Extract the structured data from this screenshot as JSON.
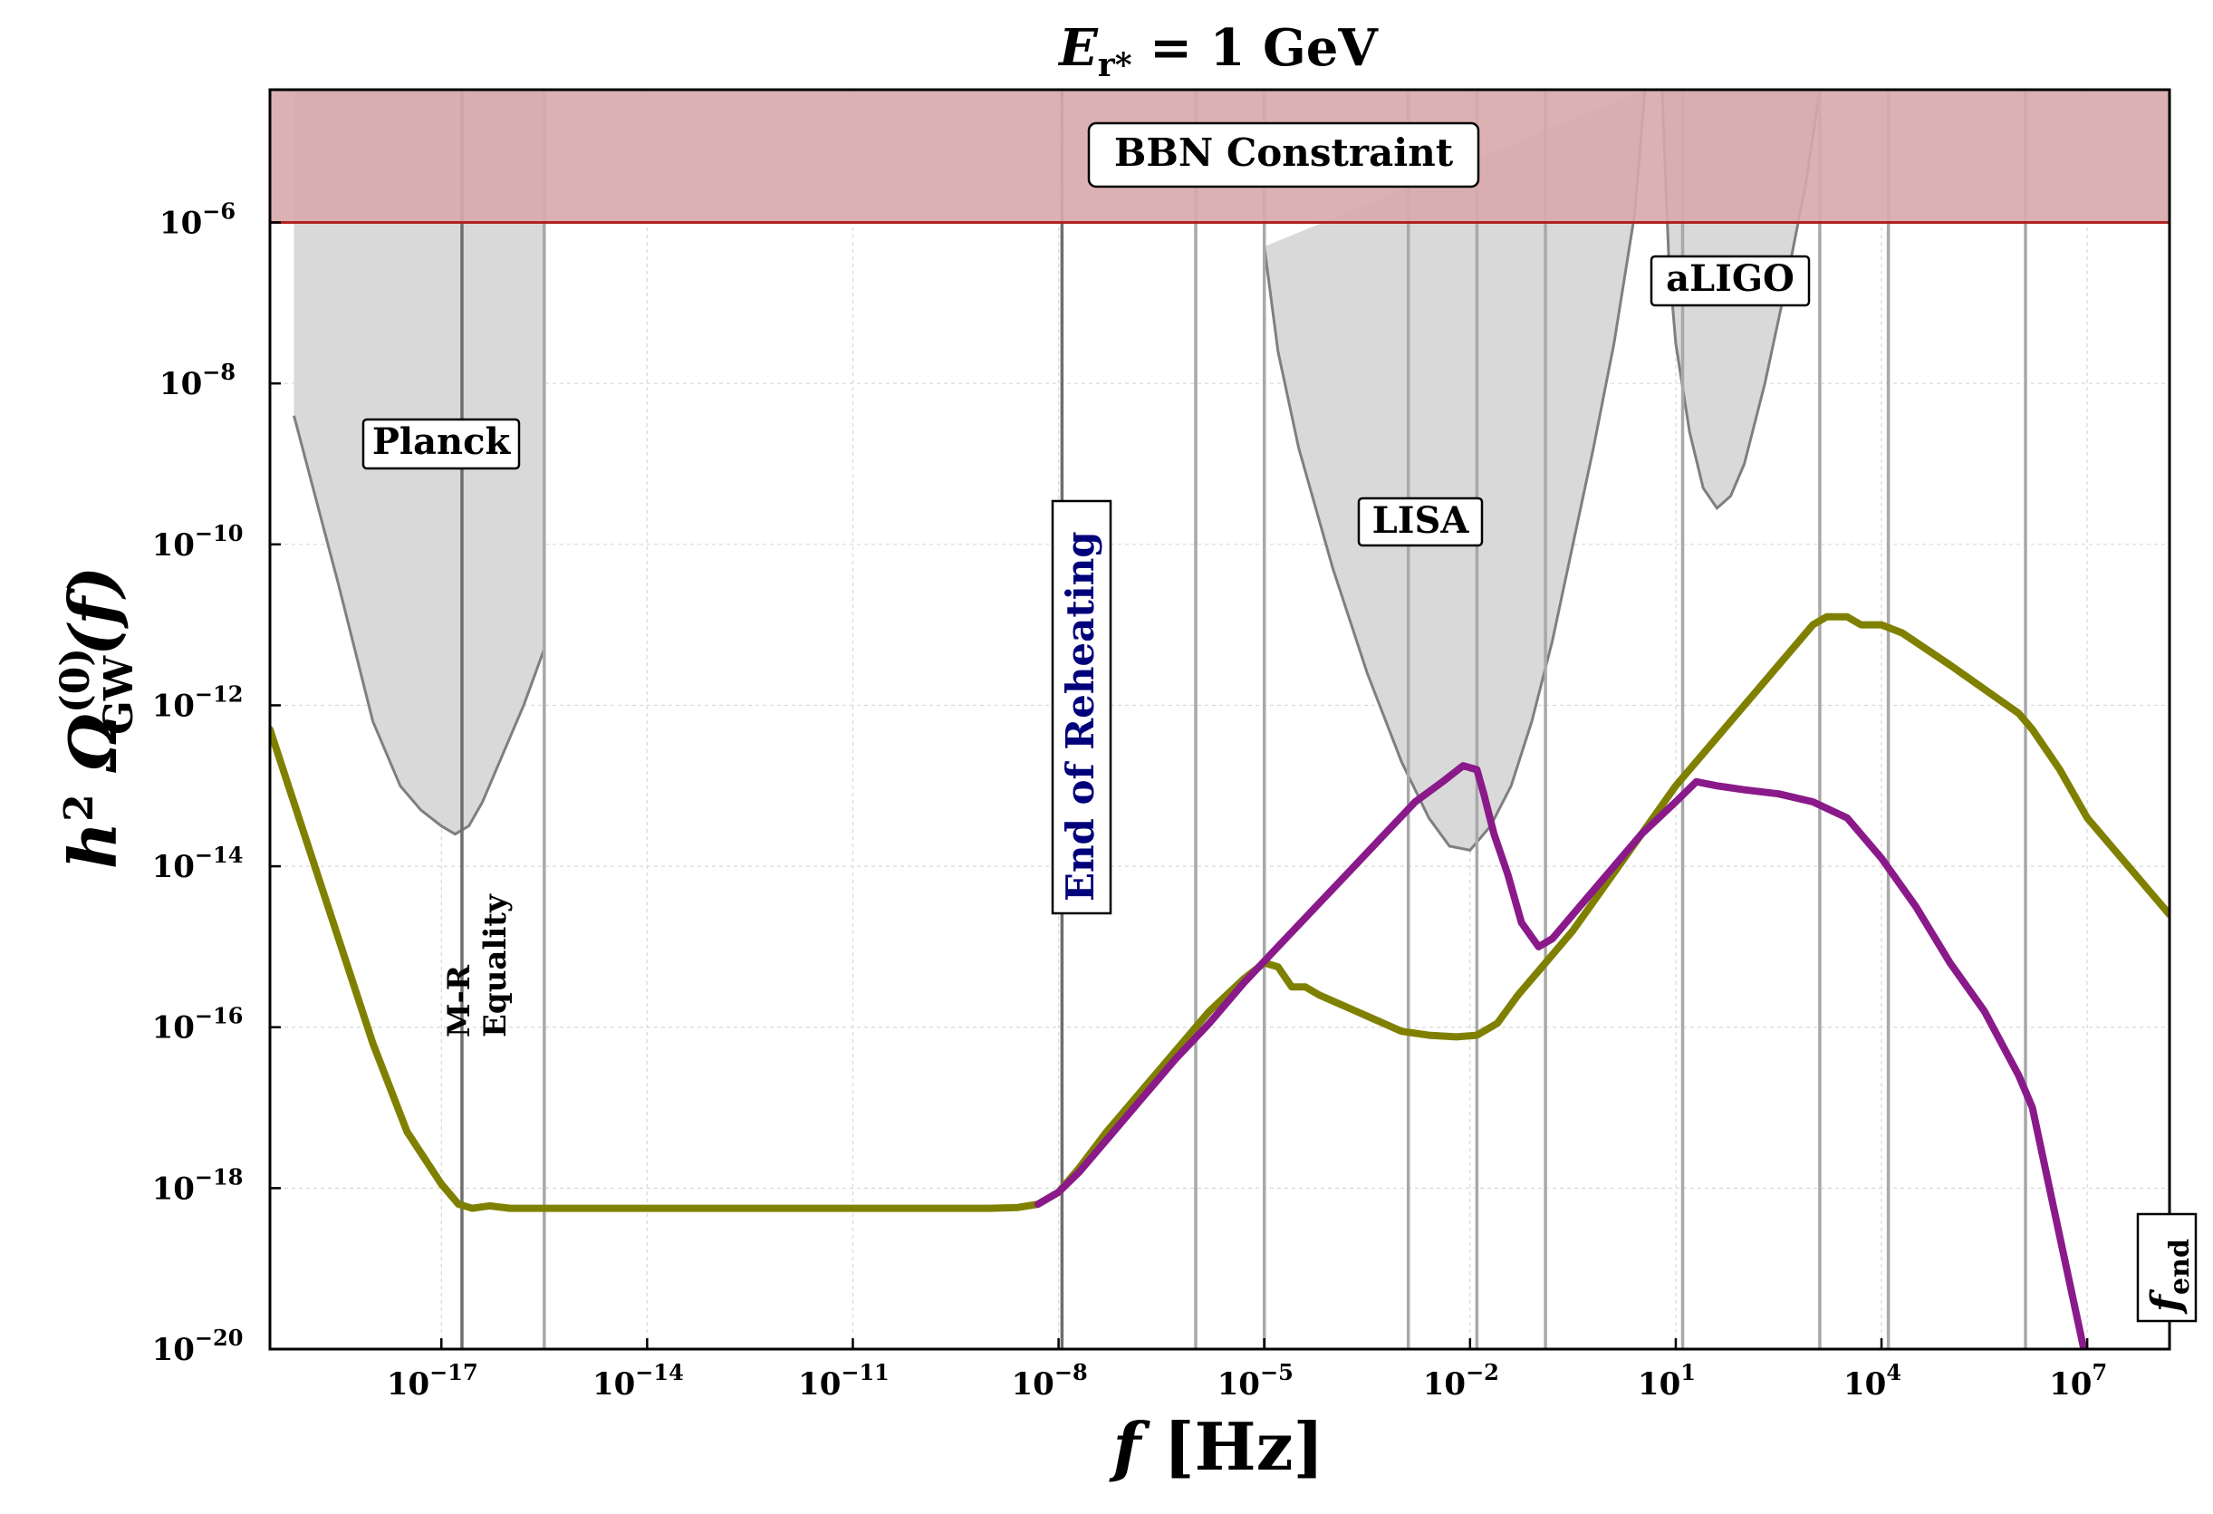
{
  "chart_data": {
    "type": "line",
    "title": {
      "main": "E",
      "sub": "r*",
      "rest": " = 1 GeV"
    },
    "xlabel": {
      "main": "f",
      "rest": " [Hz]"
    },
    "ylabel": {
      "pre": "h",
      "pre_sup": "2",
      "main": " Ω",
      "sup": "(0)",
      "sub": "GW",
      "rest": "(f)"
    },
    "x_scale": "log10",
    "y_scale": "log10",
    "xlim_log10": [
      -19.5,
      8.2
    ],
    "ylim_log10": [
      -20,
      -4.35
    ],
    "grid": true,
    "x_ticks": [
      {
        "base": "10",
        "exp": "−17",
        "log": -17
      },
      {
        "base": "10",
        "exp": "−14",
        "log": -14
      },
      {
        "base": "10",
        "exp": "−11",
        "log": -11
      },
      {
        "base": "10",
        "exp": "−8",
        "log": -8
      },
      {
        "base": "10",
        "exp": "−5",
        "log": -5
      },
      {
        "base": "10",
        "exp": "−2",
        "log": -2
      },
      {
        "base": "10",
        "exp": "1",
        "log": 1
      },
      {
        "base": "10",
        "exp": "4",
        "log": 4
      },
      {
        "base": "10",
        "exp": "7",
        "log": 7
      }
    ],
    "y_ticks": [
      {
        "base": "10",
        "exp": "−6",
        "log": -6
      },
      {
        "base": "10",
        "exp": "−8",
        "log": -8
      },
      {
        "base": "10",
        "exp": "−10",
        "log": -10
      },
      {
        "base": "10",
        "exp": "−12",
        "log": -12
      },
      {
        "base": "10",
        "exp": "−14",
        "log": -14
      },
      {
        "base": "10",
        "exp": "−16",
        "log": -16
      },
      {
        "base": "10",
        "exp": "−18",
        "log": -18
      },
      {
        "base": "10",
        "exp": "−20",
        "log": -20
      }
    ],
    "bbn": {
      "label": "BBN Constraint",
      "log_min": -6,
      "fill": "#d8a9ab",
      "line": "#b22222"
    },
    "sensitivity_regions": [
      {
        "name": "Planck",
        "label": "Planck",
        "points": [
          [
            -19.15,
            -8.4
          ],
          [
            -18.5,
            -10.5
          ],
          [
            -18.0,
            -12.2
          ],
          [
            -17.6,
            -13.0
          ],
          [
            -17.3,
            -13.3
          ],
          [
            -17.0,
            -13.5
          ],
          [
            -16.8,
            -13.6
          ],
          [
            -16.6,
            -13.5
          ],
          [
            -16.4,
            -13.2
          ],
          [
            -16.1,
            -12.6
          ],
          [
            -15.8,
            -12.0
          ],
          [
            -15.5,
            -11.3
          ]
        ],
        "x_right": -15.5
      },
      {
        "name": "LISA",
        "label": "LISA",
        "points": [
          [
            -5.0,
            -6.3
          ],
          [
            -4.8,
            -7.6
          ],
          [
            -4.5,
            -8.8
          ],
          [
            -4.0,
            -10.3
          ],
          [
            -3.5,
            -11.6
          ],
          [
            -3.0,
            -12.7
          ],
          [
            -2.6,
            -13.4
          ],
          [
            -2.3,
            -13.75
          ],
          [
            -2.0,
            -13.8
          ],
          [
            -1.7,
            -13.5
          ],
          [
            -1.4,
            -13.0
          ],
          [
            -1.1,
            -12.2
          ],
          [
            -0.8,
            -11.2
          ],
          [
            -0.5,
            -10.0
          ],
          [
            -0.2,
            -8.8
          ],
          [
            0.1,
            -7.5
          ],
          [
            0.4,
            -5.9
          ],
          [
            0.55,
            -4.35
          ]
        ]
      },
      {
        "name": "aLIGO",
        "label": "aLIGO",
        "points": [
          [
            0.8,
            -4.35
          ],
          [
            0.9,
            -6.5
          ],
          [
            1.0,
            -7.5
          ],
          [
            1.2,
            -8.6
          ],
          [
            1.4,
            -9.3
          ],
          [
            1.6,
            -9.55
          ],
          [
            1.8,
            -9.4
          ],
          [
            2.0,
            -9.0
          ],
          [
            2.3,
            -8.0
          ],
          [
            2.6,
            -6.8
          ],
          [
            2.9,
            -5.5
          ],
          [
            3.1,
            -4.35
          ]
        ]
      }
    ],
    "vertical_lines": [
      {
        "log": -16.7,
        "kind": "dark"
      },
      {
        "log": -15.5,
        "kind": "light"
      },
      {
        "log": -7.95,
        "kind": "dark"
      },
      {
        "log": -6.0,
        "kind": "light"
      },
      {
        "log": -5.0,
        "kind": "light"
      },
      {
        "log": -2.9,
        "kind": "light"
      },
      {
        "log": -1.9,
        "kind": "light"
      },
      {
        "log": -0.9,
        "kind": "light"
      },
      {
        "log": 1.1,
        "kind": "light"
      },
      {
        "log": 3.1,
        "kind": "light"
      },
      {
        "log": 4.1,
        "kind": "light"
      },
      {
        "log": 6.1,
        "kind": "light"
      }
    ],
    "annotations": {
      "mr_equality": [
        "M-R",
        "Equality"
      ],
      "end_of_reheating": "End of Reheating",
      "f_end": {
        "main": "f",
        "sub": "end"
      }
    },
    "series": [
      {
        "name": "olive",
        "color": "#808000",
        "points": [
          [
            -19.5,
            -12.3
          ],
          [
            -19.0,
            -13.6
          ],
          [
            -18.5,
            -14.9
          ],
          [
            -18.0,
            -16.2
          ],
          [
            -17.5,
            -17.3
          ],
          [
            -17.0,
            -17.95
          ],
          [
            -16.75,
            -18.2
          ],
          [
            -16.55,
            -18.25
          ],
          [
            -16.3,
            -18.22
          ],
          [
            -16.0,
            -18.25
          ],
          [
            -14.0,
            -18.25
          ],
          [
            -12.0,
            -18.25
          ],
          [
            -10.0,
            -18.25
          ],
          [
            -9.0,
            -18.25
          ],
          [
            -8.6,
            -18.24
          ],
          [
            -8.3,
            -18.2
          ],
          [
            -8.0,
            -18.05
          ],
          [
            -7.7,
            -17.75
          ],
          [
            -7.3,
            -17.3
          ],
          [
            -6.8,
            -16.8
          ],
          [
            -6.3,
            -16.3
          ],
          [
            -5.8,
            -15.8
          ],
          [
            -5.3,
            -15.4
          ],
          [
            -5.0,
            -15.2
          ],
          [
            -4.8,
            -15.25
          ],
          [
            -4.6,
            -15.5
          ],
          [
            -4.4,
            -15.5
          ],
          [
            -4.2,
            -15.6
          ],
          [
            -3.8,
            -15.75
          ],
          [
            -3.4,
            -15.9
          ],
          [
            -3.0,
            -16.05
          ],
          [
            -2.6,
            -16.1
          ],
          [
            -2.2,
            -16.12
          ],
          [
            -1.9,
            -16.1
          ],
          [
            -1.6,
            -15.95
          ],
          [
            -1.3,
            -15.6
          ],
          [
            -1.0,
            -15.3
          ],
          [
            -0.5,
            -14.8
          ],
          [
            0.0,
            -14.2
          ],
          [
            0.5,
            -13.6
          ],
          [
            1.0,
            -13.0
          ],
          [
            1.5,
            -12.5
          ],
          [
            2.0,
            -12.0
          ],
          [
            2.5,
            -11.5
          ],
          [
            3.0,
            -11.0
          ],
          [
            3.2,
            -10.9
          ],
          [
            3.5,
            -10.9
          ],
          [
            3.7,
            -11.0
          ],
          [
            4.0,
            -11.0
          ],
          [
            4.3,
            -11.1
          ],
          [
            5.0,
            -11.5
          ],
          [
            5.5,
            -11.8
          ],
          [
            6.0,
            -12.1
          ],
          [
            6.2,
            -12.3
          ],
          [
            6.6,
            -12.8
          ],
          [
            7.0,
            -13.4
          ],
          [
            7.5,
            -13.9
          ],
          [
            8.2,
            -14.6
          ]
        ]
      },
      {
        "name": "purple",
        "color": "#8a1a8a",
        "points": [
          [
            -8.3,
            -18.2
          ],
          [
            -8.0,
            -18.05
          ],
          [
            -7.7,
            -17.8
          ],
          [
            -7.3,
            -17.4
          ],
          [
            -6.8,
            -16.9
          ],
          [
            -6.3,
            -16.4
          ],
          [
            -5.8,
            -15.95
          ],
          [
            -5.3,
            -15.45
          ],
          [
            -4.8,
            -15.0
          ],
          [
            -4.3,
            -14.55
          ],
          [
            -3.8,
            -14.1
          ],
          [
            -3.3,
            -13.65
          ],
          [
            -2.8,
            -13.2
          ],
          [
            -2.4,
            -12.95
          ],
          [
            -2.1,
            -12.75
          ],
          [
            -1.9,
            -12.8
          ],
          [
            -1.8,
            -13.1
          ],
          [
            -1.65,
            -13.6
          ],
          [
            -1.45,
            -14.1
          ],
          [
            -1.25,
            -14.7
          ],
          [
            -1.0,
            -15.0
          ],
          [
            -0.8,
            -14.9
          ],
          [
            -0.4,
            -14.5
          ],
          [
            0.0,
            -14.1
          ],
          [
            0.5,
            -13.6
          ],
          [
            1.0,
            -13.2
          ],
          [
            1.3,
            -12.95
          ],
          [
            1.6,
            -13.0
          ],
          [
            2.0,
            -13.05
          ],
          [
            2.5,
            -13.1
          ],
          [
            3.0,
            -13.2
          ],
          [
            3.5,
            -13.4
          ],
          [
            4.0,
            -13.9
          ],
          [
            4.5,
            -14.5
          ],
          [
            5.0,
            -15.2
          ],
          [
            5.5,
            -15.8
          ],
          [
            6.0,
            -16.6
          ],
          [
            6.2,
            -17.0
          ],
          [
            6.4,
            -17.8
          ],
          [
            6.7,
            -19.0
          ],
          [
            7.0,
            -20.2
          ]
        ]
      }
    ]
  }
}
